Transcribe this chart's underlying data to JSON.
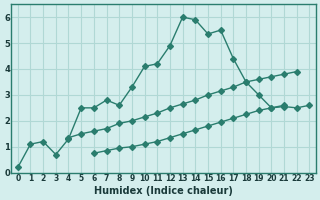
{
  "xlabel": "Humidex (Indice chaleur)",
  "ylabel": "",
  "background_color": "#d4eeed",
  "grid_color": "#b0d8d5",
  "line_color": "#2a7d6e",
  "x_values": [
    0,
    1,
    2,
    3,
    4,
    5,
    6,
    7,
    8,
    9,
    10,
    11,
    12,
    13,
    14,
    15,
    16,
    17,
    18,
    19,
    20,
    21,
    22,
    23
  ],
  "line_max": [
    0.2,
    1.1,
    1.2,
    0.7,
    1.3,
    2.5,
    2.5,
    2.8,
    2.6,
    3.3,
    4.1,
    4.2,
    4.9,
    6.0,
    5.9,
    5.35,
    5.5,
    4.4,
    3.5,
    3.0,
    2.5,
    2.6,
    null,
    null
  ],
  "line_mean": [
    null,
    null,
    null,
    null,
    1.35,
    1.5,
    1.6,
    1.7,
    1.9,
    2.0,
    2.15,
    2.3,
    2.5,
    2.65,
    2.8,
    3.0,
    3.15,
    3.3,
    3.5,
    3.6,
    3.7,
    3.8,
    3.9,
    null
  ],
  "line_min": [
    null,
    null,
    null,
    null,
    null,
    null,
    0.75,
    0.85,
    0.95,
    1.0,
    1.1,
    1.2,
    1.35,
    1.5,
    1.65,
    1.8,
    1.95,
    2.1,
    2.25,
    2.4,
    2.5,
    2.55,
    2.5,
    2.6
  ],
  "ylim": [
    0,
    6.5
  ],
  "xlim": [
    -0.5,
    23.5
  ],
  "yticks": [
    0,
    1,
    2,
    3,
    4,
    5,
    6
  ],
  "xticks": [
    0,
    1,
    2,
    3,
    4,
    5,
    6,
    7,
    8,
    9,
    10,
    11,
    12,
    13,
    14,
    15,
    16,
    17,
    18,
    19,
    20,
    21,
    22,
    23
  ]
}
